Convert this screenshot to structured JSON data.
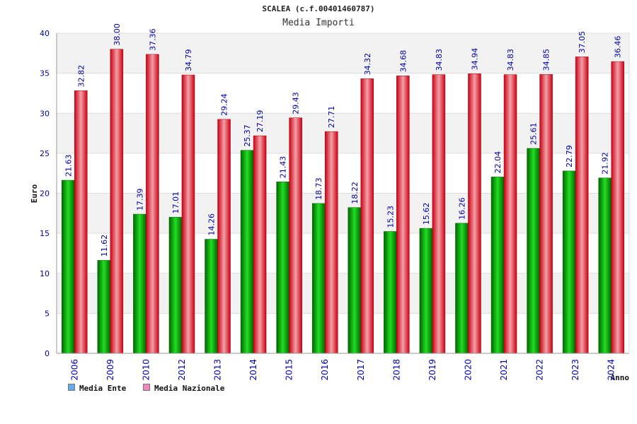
{
  "title": "SCALEA (c.f.00401460787)",
  "subtitle": "Media Importi",
  "chart_data": {
    "type": "bar",
    "categories": [
      "2006",
      "2009",
      "2010",
      "2012",
      "2013",
      "2014",
      "2015",
      "2016",
      "2017",
      "2018",
      "2019",
      "2020",
      "2021",
      "2022",
      "2023",
      "2024"
    ],
    "series": [
      {
        "name": "Media Ente",
        "color": "#00aa00",
        "values": [
          21.63,
          11.62,
          17.39,
          17.01,
          14.26,
          25.37,
          21.43,
          18.73,
          18.22,
          15.23,
          15.62,
          16.26,
          22.04,
          25.61,
          22.79,
          21.92
        ],
        "labels": [
          "21.63",
          "11.62",
          "17.39",
          "17.01",
          "14.26",
          "25.37",
          "21.43",
          "18.73",
          "18.22",
          "15.23",
          "15.62",
          "16.26",
          "22.04",
          "25.61",
          "22.79",
          "21.92"
        ]
      },
      {
        "name": "Media Nazionale",
        "color": "#ee1122",
        "values": [
          32.82,
          38.0,
          37.36,
          34.79,
          29.24,
          27.19,
          29.43,
          27.71,
          34.32,
          34.68,
          34.83,
          34.94,
          34.83,
          34.85,
          37.05,
          36.46
        ],
        "labels": [
          "32.82",
          "38.00",
          "37.36",
          "34.79",
          "29.24",
          "27.19",
          "29.43",
          "27.71",
          "34.32",
          "34.68",
          "34.83",
          "34.94",
          "34.83",
          "34.85",
          "37.05",
          "36.46"
        ]
      }
    ],
    "legend_swatch_colors": [
      "#66aaee",
      "#ee88bb"
    ],
    "ylabel": "Euro",
    "xlabel": "Anno",
    "ylim": [
      0,
      40
    ],
    "yticks": [
      "0",
      "5",
      "10",
      "15",
      "20",
      "25",
      "30",
      "35",
      "40"
    ],
    "grid": true,
    "legend_position": "bottom-left"
  }
}
